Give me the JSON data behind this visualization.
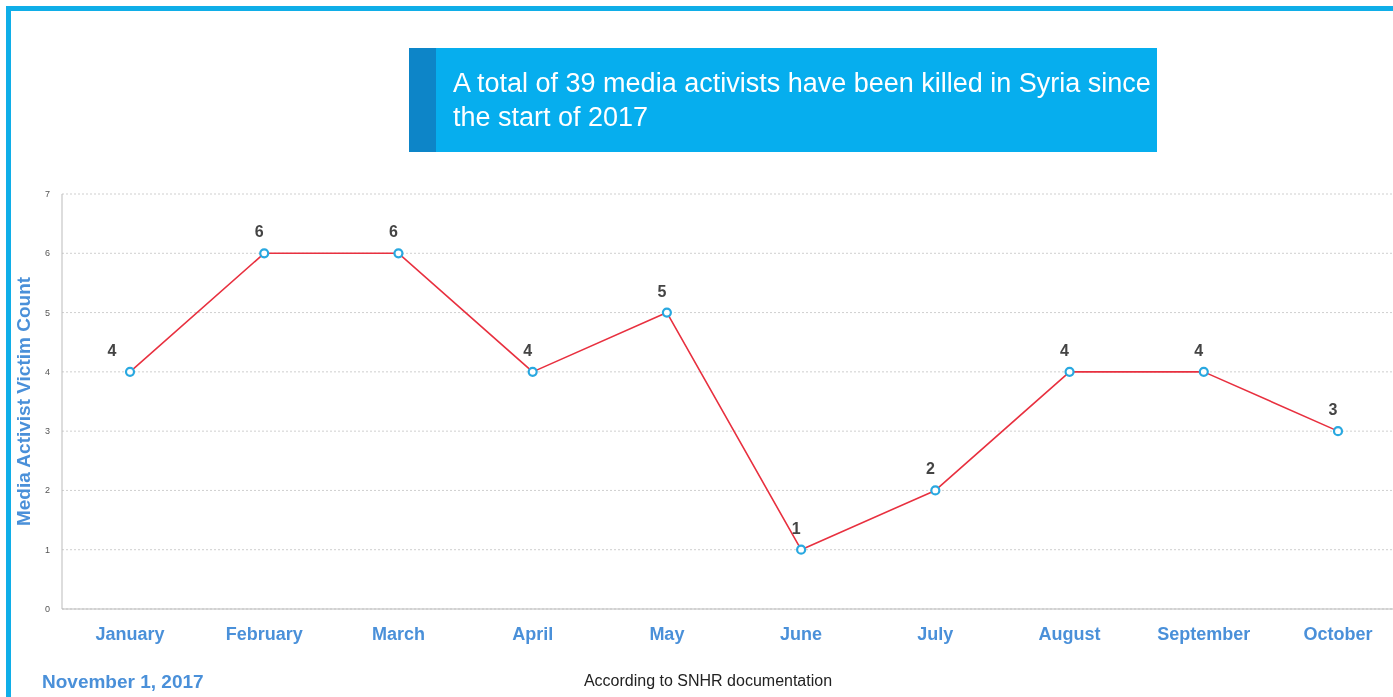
{
  "chart_data": {
    "type": "line",
    "title": "A total of 39 media activists have been killed in Syria since the start of 2017",
    "ylabel": "Media Activist Victim Count",
    "categories": [
      "January",
      "February",
      "March",
      "April",
      "May",
      "June",
      "July",
      "August",
      "September",
      "October"
    ],
    "series": [
      {
        "color": "#e8303f",
        "values": [
          4,
          6,
          6,
          4,
          5,
          1,
          2,
          4,
          4,
          3
        ]
      }
    ],
    "ylim": [
      0,
      7
    ],
    "yticks": [
      0,
      1,
      2,
      3,
      4,
      5,
      6,
      7
    ],
    "grid": "y",
    "marker": "circle",
    "data_labels": true,
    "annotations": [
      "November 1, 2017",
      "According to SNHR documentation"
    ]
  }
}
